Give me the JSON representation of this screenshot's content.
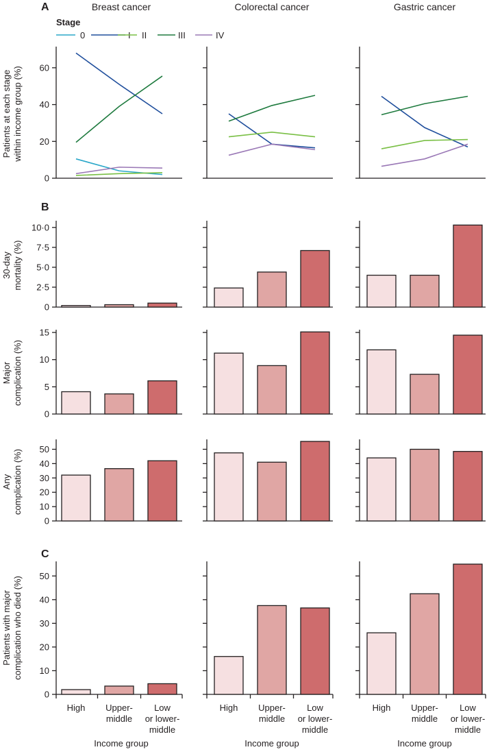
{
  "panel_letters": {
    "a": "A",
    "b": "B",
    "c": "C"
  },
  "legend": {
    "title": "Stage",
    "items": [
      {
        "label": "0",
        "color": "#2aa7c9"
      },
      {
        "label": "I",
        "color": "#1f4e9c"
      },
      {
        "label": "II",
        "color": "#79bf44"
      },
      {
        "label": "III",
        "color": "#1e7a3e"
      },
      {
        "label": "IV",
        "color": "#9a78b6"
      }
    ]
  },
  "bar_colors": [
    "#f6e0e1",
    "#e0a6a4",
    "#ce6c6d"
  ],
  "columns": [
    "Breast cancer",
    "Colorectal cancer",
    "Gastric cancer"
  ],
  "x_categories": [
    "High",
    "Upper-\nmiddle",
    "Low\nor lower-\nmiddle"
  ],
  "x_axis_label": "Income group",
  "chart_data": [
    {
      "type": "line",
      "panel": "A",
      "ylabel": "Patients at each stage\nwithin income group (%)",
      "ylim": [
        0,
        70
      ],
      "yticks": [
        "0",
        "20",
        "40",
        "60"
      ],
      "categories": [
        "High",
        "Upper-middle",
        "Low or lower-middle"
      ],
      "facets": [
        {
          "title": "Breast cancer",
          "series": [
            {
              "name": "0",
              "values": [
                10.5,
                4,
                2
              ]
            },
            {
              "name": "I",
              "values": [
                68,
                51,
                35
              ]
            },
            {
              "name": "II",
              "values": [
                1.5,
                2.5,
                3
              ]
            },
            {
              "name": "III",
              "values": [
                19.5,
                39,
                55.5
              ]
            },
            {
              "name": "IV",
              "values": [
                2.5,
                6,
                5.5
              ]
            }
          ]
        },
        {
          "title": "Colorectal cancer",
          "series": [
            {
              "name": "I",
              "values": [
                35,
                18.5,
                16.5
              ]
            },
            {
              "name": "II",
              "values": [
                22.5,
                25,
                22.5
              ]
            },
            {
              "name": "III",
              "values": [
                31,
                39.5,
                45
              ]
            },
            {
              "name": "IV",
              "values": [
                12.5,
                18.5,
                15.5
              ]
            }
          ]
        },
        {
          "title": "Gastric cancer",
          "series": [
            {
              "name": "I",
              "values": [
                44.5,
                27.5,
                17
              ]
            },
            {
              "name": "II",
              "values": [
                16,
                20.5,
                21
              ]
            },
            {
              "name": "III",
              "values": [
                34.5,
                40.5,
                44.5
              ]
            },
            {
              "name": "IV",
              "values": [
                6.5,
                10.5,
                18.5
              ]
            }
          ]
        }
      ]
    },
    {
      "type": "bar",
      "panel": "B",
      "ylabel": "30-day\nmortality (%)",
      "ylim": [
        0,
        10.5
      ],
      "yticks": [
        "0",
        "2·5",
        "5·0",
        "7·5",
        "10·0"
      ],
      "categories": [
        "High",
        "Upper-middle",
        "Low or lower-middle"
      ],
      "facets": [
        {
          "title": "Breast cancer",
          "values": [
            0.2,
            0.3,
            0.5
          ]
        },
        {
          "title": "Colorectal cancer",
          "values": [
            2.4,
            4.4,
            7.1
          ]
        },
        {
          "title": "Gastric cancer",
          "values": [
            4.0,
            4.0,
            10.3
          ]
        }
      ]
    },
    {
      "type": "bar",
      "panel": "B",
      "ylabel": "Major\ncomplication (%)",
      "ylim": [
        0,
        15
      ],
      "yticks": [
        "0",
        "5",
        "10",
        "15"
      ],
      "categories": [
        "High",
        "Upper-middle",
        "Low or lower-middle"
      ],
      "facets": [
        {
          "title": "Breast cancer",
          "values": [
            4.1,
            3.7,
            6.1
          ]
        },
        {
          "title": "Colorectal cancer",
          "values": [
            11.2,
            8.9,
            15.1
          ]
        },
        {
          "title": "Gastric cancer",
          "values": [
            11.8,
            7.3,
            14.5
          ]
        }
      ]
    },
    {
      "type": "bar",
      "panel": "B",
      "ylabel": "Any\ncomplication (%)",
      "ylim": [
        0,
        55
      ],
      "yticks": [
        "0",
        "10",
        "20",
        "30",
        "40",
        "50"
      ],
      "categories": [
        "High",
        "Upper-middle",
        "Low or lower-middle"
      ],
      "facets": [
        {
          "title": "Breast cancer",
          "values": [
            32,
            36.5,
            42
          ]
        },
        {
          "title": "Colorectal cancer",
          "values": [
            47.5,
            41,
            55.5
          ]
        },
        {
          "title": "Gastric cancer",
          "values": [
            44,
            50,
            48.5
          ]
        }
      ]
    },
    {
      "type": "bar",
      "panel": "C",
      "ylabel": "Patients with major\ncomplication who died (%)",
      "ylim": [
        0,
        55
      ],
      "yticks": [
        "0",
        "10",
        "20",
        "30",
        "40",
        "50"
      ],
      "categories": [
        "High",
        "Upper-middle",
        "Low or lower-middle"
      ],
      "facets": [
        {
          "title": "Breast cancer",
          "values": [
            2,
            3.5,
            4.5
          ]
        },
        {
          "title": "Colorectal cancer",
          "values": [
            16,
            37.5,
            36.5
          ]
        },
        {
          "title": "Gastric cancer",
          "values": [
            26,
            42.5,
            55
          ]
        }
      ]
    }
  ]
}
